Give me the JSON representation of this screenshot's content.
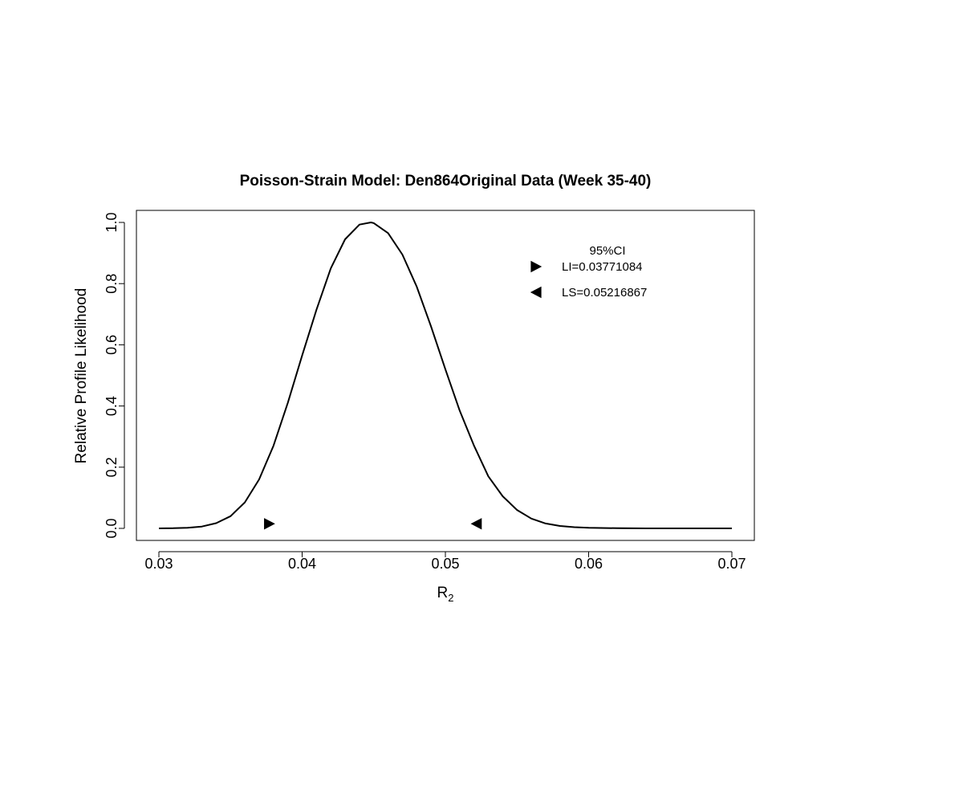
{
  "chart_data": {
    "type": "line",
    "title": "Poisson-Strain Model: Den864Original Data (Week 35-40)",
    "xlabel_main": "R",
    "xlabel_sub": "2",
    "ylabel": "Relative Profile Likelihood",
    "xlim": [
      0.03,
      0.07
    ],
    "ylim": [
      0.0,
      1.0
    ],
    "x_ticks": [
      0.03,
      0.04,
      0.05,
      0.06,
      0.07
    ],
    "x_tick_labels": [
      "0.03",
      "0.04",
      "0.05",
      "0.06",
      "0.07"
    ],
    "y_ticks": [
      0.0,
      0.2,
      0.4,
      0.6,
      0.8,
      1.0
    ],
    "y_tick_labels": [
      "0.0",
      "0.2",
      "0.4",
      "0.6",
      "0.8",
      "1.0"
    ],
    "grid": false,
    "series": [
      {
        "x": [
          0.03,
          0.031,
          0.032,
          0.033,
          0.034,
          0.035,
          0.036,
          0.037,
          0.038,
          0.039,
          0.04,
          0.041,
          0.042,
          0.043,
          0.044,
          0.0448,
          0.045,
          0.046,
          0.047,
          0.048,
          0.049,
          0.05,
          0.051,
          0.052,
          0.053,
          0.054,
          0.055,
          0.056,
          0.057,
          0.058,
          0.059,
          0.06,
          0.062,
          0.064,
          0.066,
          0.068,
          0.07
        ],
        "y": [
          0.0,
          0.0005,
          0.002,
          0.006,
          0.017,
          0.04,
          0.085,
          0.16,
          0.27,
          0.41,
          0.565,
          0.715,
          0.85,
          0.945,
          0.993,
          1.0,
          0.998,
          0.965,
          0.895,
          0.79,
          0.66,
          0.52,
          0.385,
          0.27,
          0.17,
          0.105,
          0.06,
          0.032,
          0.016,
          0.008,
          0.004,
          0.002,
          0.0005,
          0.0,
          0.0,
          0.0,
          0.0
        ]
      }
    ],
    "markers": [
      {
        "x": 0.03771084,
        "y": 0.015,
        "symbol": "triangle-right"
      },
      {
        "x": 0.05216867,
        "y": 0.015,
        "symbol": "triangle-left"
      }
    ],
    "legend": {
      "placement": "top-right",
      "title": "95%CI",
      "entries": [
        {
          "symbol": "triangle-right",
          "label": "LI=0.03771084"
        },
        {
          "symbol": "triangle-left",
          "label": "LS=0.05216867"
        }
      ]
    }
  }
}
